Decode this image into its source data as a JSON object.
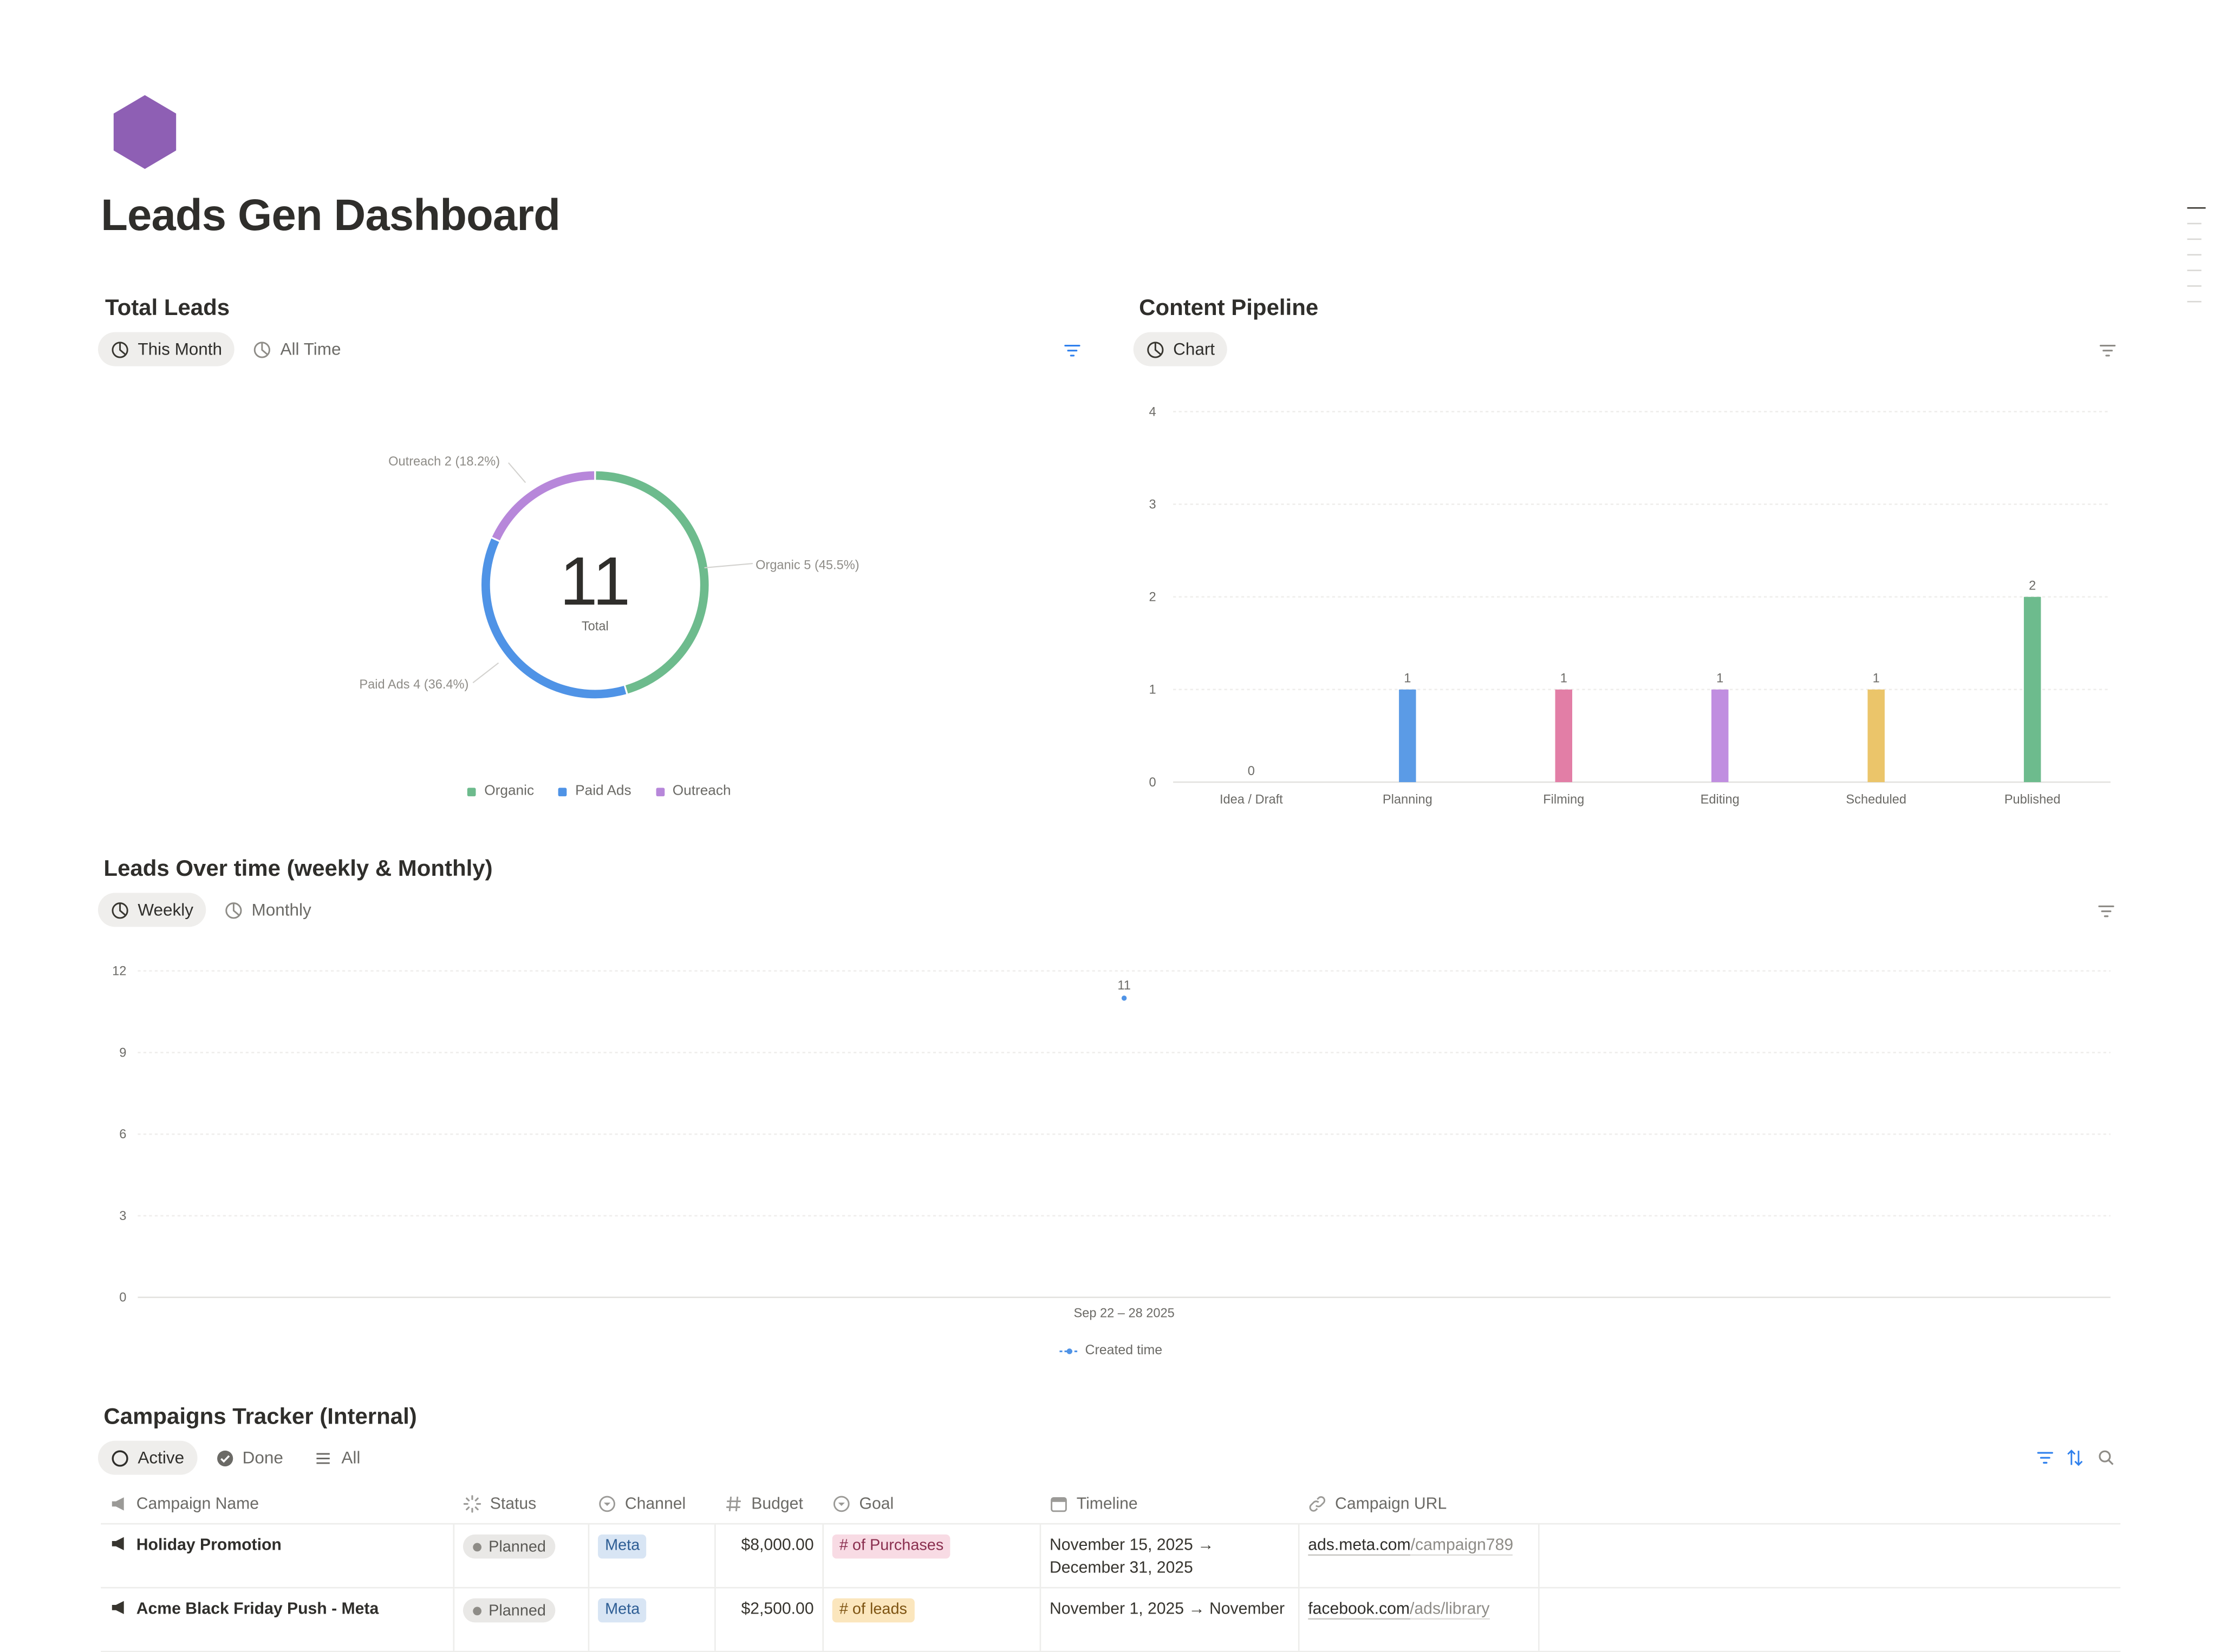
{
  "page": {
    "title": "Leads Gen Dashboard",
    "icon": "purple-hexagon-icon",
    "accent_color": "#8e5fb4"
  },
  "total_leads": {
    "title": "Total Leads",
    "tabs": [
      {
        "label": "This Month",
        "icon": "chart-pie-icon",
        "active": true
      },
      {
        "label": "All Time",
        "icon": "chart-pie-icon",
        "active": false
      }
    ],
    "center_value": "11",
    "center_label": "Total",
    "slice_labels": {
      "organic": "Organic 5 (45.5%)",
      "paid_ads": "Paid Ads 4 (36.4%)",
      "outreach": "Outreach 2 (18.2%)"
    },
    "legend": [
      "Organic",
      "Paid Ads",
      "Outreach"
    ]
  },
  "content_pipeline": {
    "title": "Content Pipeline",
    "tabs": [
      {
        "label": "Chart",
        "icon": "chart-pie-icon",
        "active": true
      }
    ]
  },
  "leads_over_time": {
    "title": "Leads Over time (weekly & Monthly)",
    "tabs": [
      {
        "label": "Weekly",
        "icon": "chart-pie-icon",
        "active": true
      },
      {
        "label": "Monthly",
        "icon": "chart-pie-icon",
        "active": false
      }
    ],
    "legend_label": "Created time"
  },
  "campaigns": {
    "title": "Campaigns Tracker (Internal)",
    "tabs": [
      {
        "label": "Active",
        "icon": "circle-icon",
        "active": true
      },
      {
        "label": "Done",
        "icon": "check-circle-icon",
        "active": false
      },
      {
        "label": "All",
        "icon": "list-icon",
        "active": false
      }
    ],
    "columns": [
      "Campaign Name",
      "Status",
      "Channel",
      "Budget",
      "Goal",
      "Timeline",
      "Campaign URL"
    ],
    "rows": [
      {
        "name": "Holiday Promotion",
        "status": "Planned",
        "channel": "Meta",
        "budget": "$8,000.00",
        "goal": "# of Purchases",
        "timeline": "November 15, 2025 → December 31, 2025",
        "url_host": "ads.meta.com",
        "url_path": "/campaign789"
      },
      {
        "name": "Acme Black Friday Push - Meta",
        "status": "Planned",
        "channel": "Meta",
        "budget": "$2,500.00",
        "goal": "# of leads",
        "timeline": "November 1, 2025 → November",
        "url_host": "facebook.com",
        "url_path": "/ads/library"
      }
    ]
  },
  "chart_data": [
    {
      "type": "pie",
      "title": "Total Leads",
      "categories": [
        "Organic",
        "Paid Ads",
        "Outreach"
      ],
      "values": [
        5,
        4,
        2
      ],
      "percentages": [
        45.5,
        36.4,
        18.2
      ],
      "colors": [
        "#6dbb8d",
        "#4f93e6",
        "#b787da"
      ],
      "total": 11,
      "legend": "bottom"
    },
    {
      "type": "bar",
      "title": "Content Pipeline",
      "categories": [
        "Idea / Draft",
        "Planning",
        "Filming",
        "Editing",
        "Scheduled",
        "Published"
      ],
      "values": [
        0,
        1,
        1,
        1,
        1,
        2
      ],
      "colors": [
        "#9b9a97",
        "#5b9be6",
        "#e27ea6",
        "#c08ee0",
        "#ebc56a",
        "#6dbb8d"
      ],
      "ylim": [
        0,
        4
      ],
      "yticks": [
        0,
        1,
        2,
        3,
        4
      ],
      "grid": true
    },
    {
      "type": "line",
      "title": "Leads Over time (weekly & Monthly)",
      "series": [
        {
          "name": "Created time",
          "x": [
            "Sep 22 – 28 2025"
          ],
          "values": [
            11
          ]
        }
      ],
      "color": "#4f93e6",
      "ylim": [
        0,
        12
      ],
      "yticks": [
        0,
        3,
        6,
        9,
        12
      ],
      "grid": true,
      "legend": "bottom"
    }
  ]
}
